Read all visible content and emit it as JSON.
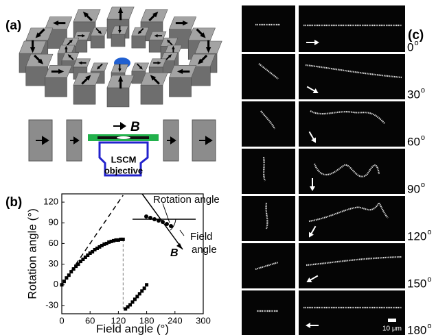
{
  "panel_labels": {
    "a": "(a)",
    "b": "(b)",
    "c": "(c)"
  },
  "schematic": {
    "field_label": "B",
    "objective_line1": "LSCM",
    "objective_line2": "objective"
  },
  "chart_data": {
    "type": "scatter",
    "xlabel": "Field angle (°)",
    "ylabel": "Rotation angle (°)",
    "xlim": [
      0,
      300
    ],
    "ylim": [
      -42,
      132
    ],
    "xticks": [
      0,
      60,
      120,
      180,
      240,
      300
    ],
    "yticks": [
      -30,
      0,
      30,
      60,
      90,
      120
    ],
    "series": [
      {
        "marker": "square",
        "color": "#000000",
        "x": [
          0,
          5,
          10,
          15,
          20,
          25,
          30,
          35,
          40,
          45,
          50,
          55,
          60,
          65,
          70,
          75,
          80,
          85,
          90,
          95,
          100,
          105,
          110,
          115,
          120,
          125,
          130,
          135,
          140,
          145,
          150,
          155,
          160,
          165,
          170,
          175,
          180
        ],
        "values": [
          0,
          5,
          10,
          14,
          19,
          23,
          27,
          30,
          34,
          37,
          40,
          43,
          46,
          48,
          51,
          53,
          55,
          57,
          59,
          60,
          62,
          63,
          64,
          65,
          65,
          66,
          66,
          -35,
          -32,
          -29,
          -25,
          -21,
          -17,
          -13,
          -9,
          -5,
          0
        ]
      },
      {
        "line": "dashed",
        "color": "#000000",
        "x": [
          0,
          130
        ],
        "values": [
          0,
          130
        ]
      }
    ],
    "inset_labels": {
      "rotation": "Rotation angle",
      "field1": "Field",
      "field2": "angle",
      "vector": "B"
    }
  },
  "panel_c": {
    "angles": [
      0,
      30,
      60,
      90,
      120,
      150,
      180
    ],
    "degree_mark": "o",
    "scale_bar": "10 μm"
  }
}
